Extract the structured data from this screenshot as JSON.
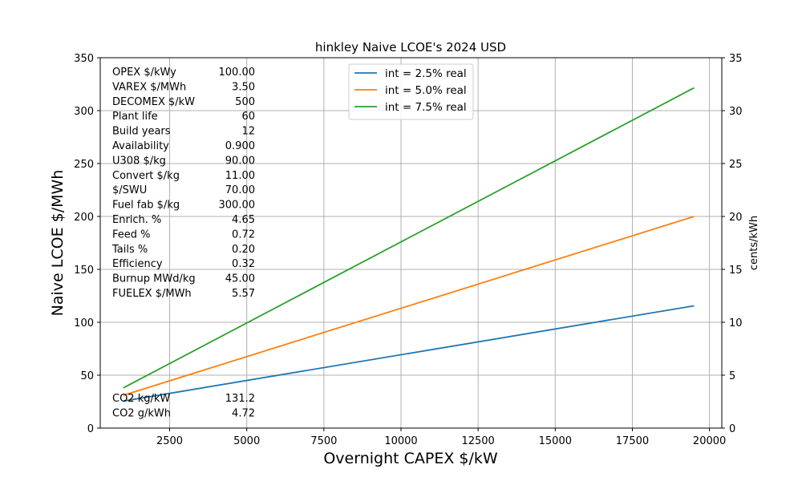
{
  "chart_data": {
    "type": "line",
    "title": "hinkley Naive LCOE's 2024 USD",
    "xlabel": "Overnight CAPEX $/kW",
    "ylabel": "Naive LCOE $/MWh",
    "y2label": "cents/kWh",
    "xlim": [
      250,
      20400
    ],
    "ylim": [
      0,
      350
    ],
    "y2lim": [
      0,
      35
    ],
    "x_ticks": [
      2500,
      5000,
      7500,
      10000,
      12500,
      15000,
      17500,
      20000
    ],
    "y_ticks": [
      0,
      50,
      100,
      150,
      200,
      250,
      300,
      350
    ],
    "y2_ticks": [
      0,
      5,
      10,
      15,
      20,
      25,
      30,
      35
    ],
    "grid": true,
    "legend_position": "upper-center",
    "series": [
      {
        "name": "int = 2.5% real",
        "color": "#1f77b4",
        "x": [
          1000,
          19500
        ],
        "y": [
          25.5,
          115.5
        ]
      },
      {
        "name": "int = 5.0% real",
        "color": "#ff7f0e",
        "x": [
          1000,
          19500
        ],
        "y": [
          31.0,
          200.0
        ]
      },
      {
        "name": "int = 7.5% real",
        "color": "#2ca02c",
        "x": [
          1000,
          19500
        ],
        "y": [
          38.0,
          321.5
        ]
      }
    ],
    "parameters": [
      {
        "label": "OPEX $/kWy",
        "value": "100.00"
      },
      {
        "label": "VAREX $/MWh",
        "value": "3.50"
      },
      {
        "label": "DECOMEX $/kW",
        "value": "500"
      },
      {
        "label": "Plant life",
        "value": "60"
      },
      {
        "label": "Build years",
        "value": "12"
      },
      {
        "label": "Availability",
        "value": "0.900"
      },
      {
        "label": "U308 $/kg",
        "value": "90.00"
      },
      {
        "label": "Convert $/kg",
        "value": "11.00"
      },
      {
        "label": "$/SWU",
        "value": "70.00"
      },
      {
        "label": "Fuel fab $/kg",
        "value": "300.00"
      },
      {
        "label": "Enrich. %",
        "value": "4.65"
      },
      {
        "label": "Feed %",
        "value": "0.72"
      },
      {
        "label": "Tails %",
        "value": "0.20"
      },
      {
        "label": "Efficiency",
        "value": "0.32"
      },
      {
        "label": "Burnup MWd/kg",
        "value": "45.00"
      },
      {
        "label": "FUELEX $/MWh",
        "value": "5.57"
      }
    ],
    "emissions": [
      {
        "label": "CO2 kg/kW",
        "value": "131.2"
      },
      {
        "label": "CO2 g/kWh",
        "value": "4.72"
      }
    ]
  }
}
